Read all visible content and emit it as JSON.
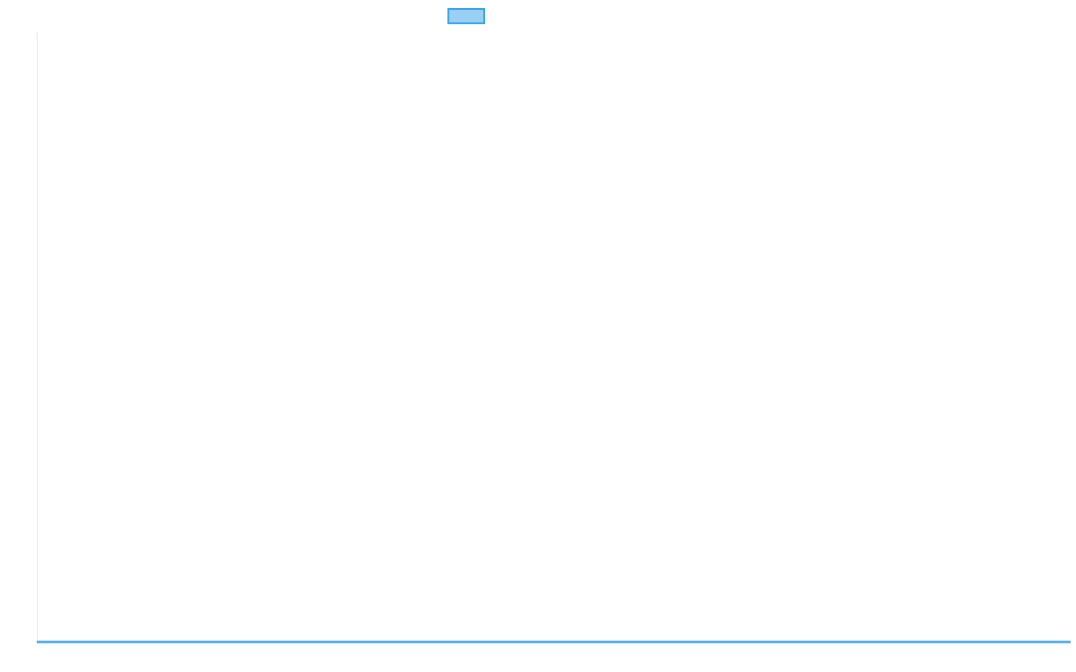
{
  "chart_data": {
    "type": "line",
    "legend": {
      "position": "top",
      "entries": [
        {
          "swatch_fill": "#9ad0f5",
          "swatch_border": "#36a2eb"
        }
      ]
    },
    "series": [
      {
        "values": [],
        "color": "#36a2eb"
      }
    ],
    "grid": false,
    "axis_color": "#e5e5e5"
  }
}
